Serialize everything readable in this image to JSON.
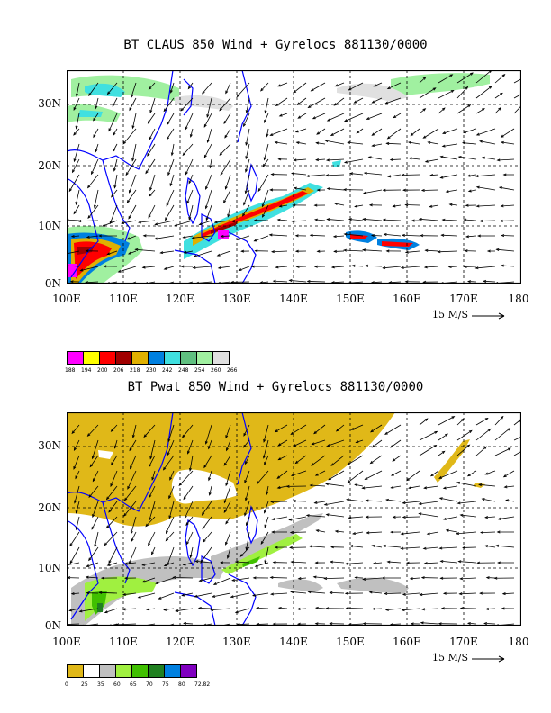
{
  "panel_top": {
    "title": "BT CLAUS 850 Wind + Gyrelocs 881130/0000",
    "lat_labels": [
      "30N",
      "20N",
      "10N",
      "0N"
    ],
    "lon_labels": [
      "100E",
      "110E",
      "120E",
      "130E",
      "140E",
      "150E",
      "160E",
      "170E",
      "180"
    ],
    "scale_text": "15 M/S",
    "colorbar_colors": [
      "#ff00ff",
      "#ffff00",
      "#ff0000",
      "#a00000",
      "#e0b000",
      "#0080e0",
      "#40e0e0",
      "#60c080",
      "#a0f0a0",
      "#e0e0e0"
    ],
    "colorbar_labels": [
      "188",
      "194",
      "200",
      "206",
      "218",
      "230",
      "242",
      "248",
      "254",
      "260",
      "266"
    ]
  },
  "panel_bottom": {
    "title": "BT Pwat 850 Wind + Gyrelocs 881130/0000",
    "lat_labels": [
      "30N",
      "20N",
      "10N",
      "0N"
    ],
    "lon_labels": [
      "100E",
      "110E",
      "120E",
      "130E",
      "140E",
      "150E",
      "160E",
      "170E",
      "180"
    ],
    "scale_text": "15 M/S",
    "colorbar_colors": [
      "#e0b818",
      "#ffffff",
      "#c0c0c0",
      "#a0f040",
      "#40c000",
      "#208020",
      "#0080e0",
      "#8000c0"
    ],
    "colorbar_labels": [
      "0",
      "25",
      "35",
      "60",
      "65",
      "70",
      "75",
      "80",
      "72.82"
    ]
  },
  "map": {
    "lon_range": [
      100,
      180
    ],
    "lat_range": [
      0,
      35
    ],
    "coastline_color": "#0000ff"
  }
}
